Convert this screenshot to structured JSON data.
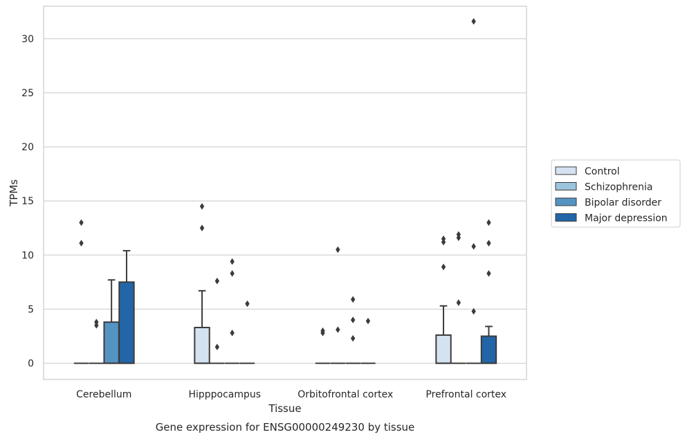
{
  "chart_data": {
    "type": "box",
    "xlabel": "Tissue",
    "ylabel": "TPMs",
    "caption": "Gene expression for ENSG00000249230 by tissue",
    "ylim": [
      -1.5,
      33
    ],
    "yticks": [
      0,
      5,
      10,
      15,
      20,
      25,
      30
    ],
    "grid": true,
    "legend_position": "right",
    "categories": [
      "Cerebellum",
      "Hipppocampus",
      "Orbitofrontal cortex",
      "Prefrontal cortex"
    ],
    "series": [
      {
        "name": "Control",
        "color": "#d4e2f1",
        "boxes": [
          {
            "q1": 0,
            "median": 0,
            "q3": 0,
            "whisker_high": 0,
            "outliers": [
              13.0,
              11.1
            ]
          },
          {
            "q1": 0,
            "median": 0,
            "q3": 3.3,
            "whisker_high": 6.7,
            "outliers": [
              14.5,
              12.5
            ]
          },
          {
            "q1": 0,
            "median": 0,
            "q3": 0,
            "whisker_high": 0,
            "outliers": [
              3.0,
              2.8
            ]
          },
          {
            "q1": 0,
            "median": 0,
            "q3": 2.6,
            "whisker_high": 5.3,
            "outliers": [
              11.5,
              11.2,
              8.9
            ]
          }
        ]
      },
      {
        "name": "Schizophrenia",
        "color": "#9dc4de",
        "boxes": [
          {
            "q1": 0,
            "median": 0,
            "q3": 0,
            "whisker_high": 0,
            "outliers": [
              3.8,
              3.5
            ]
          },
          {
            "q1": 0,
            "median": 0,
            "q3": 0,
            "whisker_high": 0,
            "outliers": [
              7.6,
              1.5
            ]
          },
          {
            "q1": 0,
            "median": 0,
            "q3": 0,
            "whisker_high": 0,
            "outliers": [
              10.5,
              3.1
            ]
          },
          {
            "q1": 0,
            "median": 0,
            "q3": 0,
            "whisker_high": 0,
            "outliers": [
              11.9,
              11.6,
              5.6
            ]
          }
        ]
      },
      {
        "name": "Bipolar disorder",
        "color": "#5494c3",
        "boxes": [
          {
            "q1": 0,
            "median": 0,
            "q3": 3.8,
            "whisker_high": 7.7,
            "outliers": []
          },
          {
            "q1": 0,
            "median": 0,
            "q3": 0,
            "whisker_high": 0,
            "outliers": [
              9.4,
              8.3,
              2.8
            ]
          },
          {
            "q1": 0,
            "median": 0,
            "q3": 0,
            "whisker_high": 0,
            "outliers": [
              5.9,
              4.0,
              2.3
            ]
          },
          {
            "q1": 0,
            "median": 0,
            "q3": 0,
            "whisker_high": 0,
            "outliers": [
              31.6,
              10.8,
              4.8
            ]
          }
        ]
      },
      {
        "name": "Major depression",
        "color": "#2266a8",
        "boxes": [
          {
            "q1": 0,
            "median": 0,
            "q3": 7.5,
            "whisker_high": 10.4,
            "outliers": []
          },
          {
            "q1": 0,
            "median": 0,
            "q3": 0,
            "whisker_high": 0,
            "outliers": [
              5.5
            ]
          },
          {
            "q1": 0,
            "median": 0,
            "q3": 0,
            "whisker_high": 0,
            "outliers": [
              3.9
            ]
          },
          {
            "q1": 0,
            "median": 0,
            "q3": 2.5,
            "whisker_high": 3.4,
            "outliers": [
              13.0,
              11.1,
              8.3
            ]
          }
        ]
      }
    ]
  }
}
